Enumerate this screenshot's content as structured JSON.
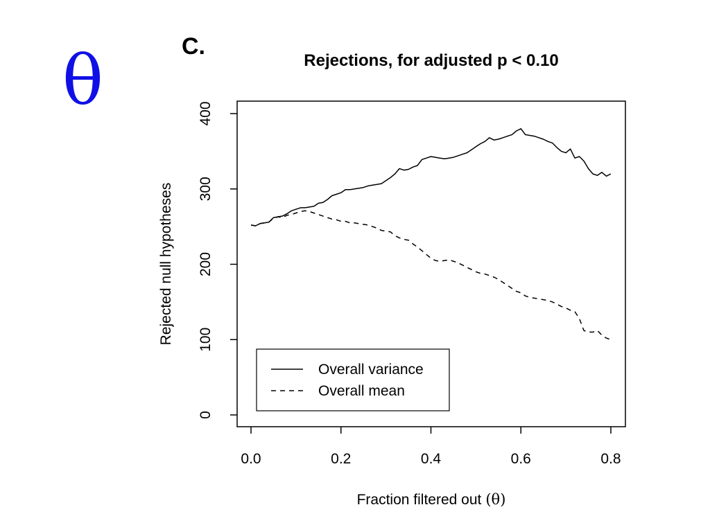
{
  "theta_symbol": "θ",
  "panel_label": "C.",
  "chart_data": {
    "type": "line",
    "title": "Rejections, for adjusted p < 0.10",
    "xlabel": "Fraction filtered out",
    "xlabel_symbol": "(θ)",
    "ylabel": "Rejected null hypotheses",
    "xlim": [
      0.0,
      0.8
    ],
    "ylim": [
      0,
      400
    ],
    "xticks": [
      0.0,
      0.2,
      0.4,
      0.6,
      0.8
    ],
    "xtick_labels": [
      "0.0",
      "0.2",
      "0.4",
      "0.6",
      "0.8"
    ],
    "yticks": [
      0,
      100,
      200,
      300,
      400
    ],
    "ytick_labels": [
      "0",
      "100",
      "200",
      "300",
      "400"
    ],
    "grid": false,
    "legend_position": "bottom-left",
    "x": [
      0.0,
      0.01,
      0.02,
      0.03,
      0.04,
      0.05,
      0.06,
      0.07,
      0.08,
      0.09,
      0.1,
      0.11,
      0.12,
      0.13,
      0.14,
      0.15,
      0.16,
      0.17,
      0.18,
      0.19,
      0.2,
      0.21,
      0.22,
      0.23,
      0.24,
      0.25,
      0.26,
      0.27,
      0.28,
      0.29,
      0.3,
      0.31,
      0.32,
      0.33,
      0.34,
      0.35,
      0.36,
      0.37,
      0.38,
      0.39,
      0.4,
      0.41,
      0.42,
      0.43,
      0.44,
      0.45,
      0.46,
      0.47,
      0.48,
      0.49,
      0.5,
      0.51,
      0.52,
      0.53,
      0.54,
      0.55,
      0.56,
      0.57,
      0.58,
      0.59,
      0.6,
      0.61,
      0.62,
      0.63,
      0.64,
      0.65,
      0.66,
      0.67,
      0.68,
      0.69,
      0.7,
      0.71,
      0.72,
      0.73,
      0.74,
      0.75,
      0.76,
      0.77,
      0.78,
      0.79,
      0.8
    ],
    "series": [
      {
        "name": "Overall variance",
        "style": "solid",
        "values": [
          252,
          251,
          254,
          255,
          256,
          262,
          263,
          264,
          267,
          271,
          273,
          275,
          275,
          276,
          277,
          281,
          282,
          286,
          291,
          293,
          295,
          299,
          299,
          300,
          301,
          302,
          304,
          305,
          306,
          307,
          311,
          315,
          320,
          327,
          325,
          326,
          329,
          331,
          339,
          341,
          343,
          342,
          341,
          340,
          341,
          342,
          344,
          346,
          348,
          352,
          356,
          360,
          363,
          368,
          365,
          366,
          368,
          370,
          372,
          377,
          380,
          372,
          371,
          370,
          368,
          366,
          363,
          361,
          355,
          350,
          348,
          353,
          341,
          343,
          337,
          327,
          320,
          318,
          322,
          317,
          320
        ],
        "color": "#000000"
      },
      {
        "name": "Overall mean",
        "style": "dashed",
        "values": [
          252,
          251,
          254,
          255,
          256,
          261,
          263,
          262,
          265,
          266,
          268,
          270,
          271,
          270,
          268,
          266,
          264,
          262,
          260,
          259,
          257,
          257,
          255,
          255,
          254,
          253,
          252,
          250,
          248,
          245,
          244,
          243,
          238,
          235,
          233,
          232,
          227,
          223,
          218,
          213,
          208,
          205,
          204,
          205,
          206,
          204,
          202,
          199,
          196,
          193,
          190,
          188,
          187,
          185,
          183,
          180,
          176,
          172,
          168,
          164,
          162,
          158,
          156,
          155,
          154,
          153,
          152,
          150,
          147,
          144,
          142,
          139,
          137,
          128,
          112,
          110,
          110,
          112,
          106,
          102,
          100
        ],
        "color": "#000000"
      }
    ]
  }
}
